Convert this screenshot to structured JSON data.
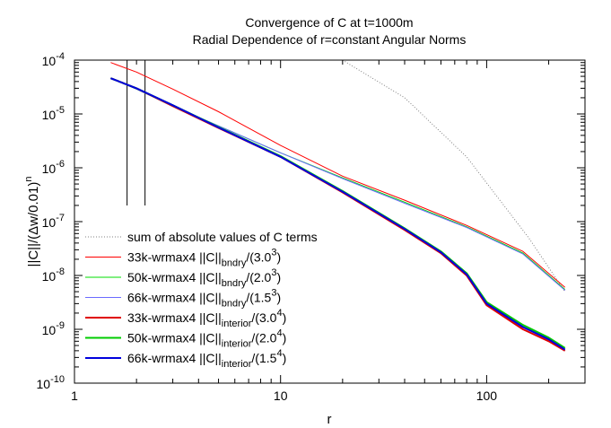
{
  "chart_data": {
    "type": "line",
    "title": "Convergence of C at t=1000m",
    "subtitle": "Radial Dependence of r=constant Angular Norms",
    "xlabel": "r",
    "ylabel": {
      "base": "||C||/(Δw/0.01)",
      "sup": "n"
    },
    "x_scale": "log",
    "y_scale": "log",
    "xlim": [
      1,
      300
    ],
    "ylim": [
      1e-10,
      0.0001
    ],
    "x_ticks": [
      {
        "value": 1,
        "label": "1"
      },
      {
        "value": 10,
        "label": "10"
      },
      {
        "value": 100,
        "label": "100"
      }
    ],
    "y_ticks": [
      {
        "exp": -10,
        "label": "10",
        "sup": "-10"
      },
      {
        "exp": -9,
        "label": "10",
        "sup": "-9"
      },
      {
        "exp": -8,
        "label": "10",
        "sup": "-8"
      },
      {
        "exp": -7,
        "label": "10",
        "sup": "-7"
      },
      {
        "exp": -6,
        "label": "10",
        "sup": "-6"
      },
      {
        "exp": -5,
        "label": "10",
        "sup": "-5"
      },
      {
        "exp": -4,
        "label": "10",
        "sup": "-4"
      }
    ],
    "vertical_lines": [
      1.8,
      2.2
    ],
    "legend_position": "bottom-left",
    "series": [
      {
        "name": "sum of absolute values of C terms",
        "legend": {
          "prefix": "sum of absolute values of C terms",
          "sub": "",
          "den": "",
          "sup": ""
        },
        "color": "#808080",
        "dash": "1,2",
        "width": 1,
        "x": [
          20,
          40,
          80,
          160,
          240
        ],
        "y": [
          0.0001,
          2e-05,
          1.6e-06,
          5e-08,
          5e-09
        ]
      },
      {
        "name": "33k-wrmax4 ||C||bndry/(3.0^3)",
        "legend": {
          "prefix": "33k-wrmax4  ||C||",
          "sub": "bndry",
          "den": "(3.0",
          "sup": "3"
        },
        "color": "#ff0000",
        "dash": "",
        "width": 1,
        "x": [
          1.5,
          2,
          3,
          5,
          10,
          20,
          40,
          80,
          150,
          240
        ],
        "y": [
          9e-05,
          6e-05,
          2.9e-05,
          1.1e-05,
          2.6e-06,
          7e-07,
          2.5e-07,
          8.5e-08,
          2.8e-08,
          6e-09
        ]
      },
      {
        "name": "50k-wrmax4 ||C||bndry/(2.0^3)",
        "legend": {
          "prefix": "50k-wrmax4  ||C||",
          "sub": "bndry",
          "den": "(2.0",
          "sup": "3"
        },
        "color": "#00dd00",
        "dash": "",
        "width": 1,
        "x": [
          1.5,
          2,
          3,
          5,
          10,
          20,
          40,
          80,
          150,
          240
        ],
        "y": [
          4.6e-05,
          2.9e-05,
          1.4e-05,
          6e-06,
          1.9e-06,
          6.5e-07,
          2.3e-07,
          8e-08,
          2.6e-08,
          5.5e-09
        ]
      },
      {
        "name": "66k-wrmax4 ||C||bndry/(1.5^3)",
        "legend": {
          "prefix": "66k-wrmax4  ||C||",
          "sub": "bndry",
          "den": "(1.5",
          "sup": "3"
        },
        "color": "#6a6aff",
        "dash": "",
        "width": 1,
        "x": [
          1.5,
          2,
          3,
          5,
          10,
          20,
          40,
          80,
          150,
          240
        ],
        "y": [
          4.6e-05,
          2.9e-05,
          1.4e-05,
          6e-06,
          1.9e-06,
          6.3e-07,
          2.2e-07,
          7.8e-08,
          2.5e-08,
          5.3e-09
        ]
      },
      {
        "name": "33k-wrmax4 ||C||interior/(3.0^4)",
        "legend": {
          "prefix": "33k-wrmax4  ||C||",
          "sub": "interior",
          "den": "(3.0",
          "sup": "4"
        },
        "color": "#e00000",
        "dash": "",
        "width": 2,
        "x": [
          1.5,
          2,
          3,
          5,
          10,
          20,
          40,
          60,
          80,
          100,
          150,
          200,
          240
        ],
        "y": [
          4.6e-05,
          3e-05,
          1.4e-05,
          5.5e-06,
          1.6e-06,
          3.5e-07,
          7e-08,
          2.6e-08,
          1e-08,
          2.8e-09,
          1e-09,
          6e-10,
          4e-10
        ]
      },
      {
        "name": "50k-wrmax4 ||C||interior/(2.0^4)",
        "legend": {
          "prefix": "50k-wrmax4  ||C||",
          "sub": "interior",
          "den": "(2.0",
          "sup": "4"
        },
        "color": "#00cc00",
        "dash": "",
        "width": 2,
        "x": [
          1.5,
          2,
          3,
          5,
          10,
          20,
          40,
          60,
          80,
          100,
          150,
          200,
          240
        ],
        "y": [
          4.6e-05,
          3e-05,
          1.45e-05,
          5.7e-06,
          1.65e-06,
          3.7e-07,
          7.5e-08,
          2.8e-08,
          1.1e-08,
          3.2e-09,
          1.2e-09,
          7e-10,
          4.5e-10
        ]
      },
      {
        "name": "66k-wrmax4 ||C||interior/(1.5^4)",
        "legend": {
          "prefix": "66k-wrmax4  ||C||",
          "sub": "interior",
          "den": "(1.5",
          "sup": "4"
        },
        "color": "#0000dd",
        "dash": "",
        "width": 2,
        "x": [
          1.5,
          2,
          3,
          5,
          10,
          20,
          40,
          60,
          80,
          100,
          150,
          200,
          240
        ],
        "y": [
          4.6e-05,
          3e-05,
          1.45e-05,
          5.6e-06,
          1.6e-06,
          3.6e-07,
          7.3e-08,
          2.7e-08,
          1.05e-08,
          3e-09,
          1.1e-09,
          6.5e-10,
          4.2e-10
        ]
      }
    ]
  }
}
